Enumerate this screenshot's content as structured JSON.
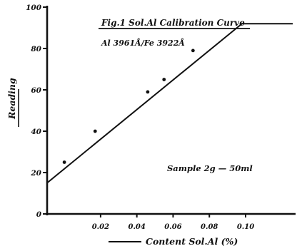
{
  "chart_data": {
    "type": "line",
    "title": "Fig.1 Sol.Al Calibration Curve",
    "subtitle": "Al 3961Å/Fe 3922Å",
    "annotation": "Sample 2g — 50ml",
    "xlabel": "Content Sol.Al (%)",
    "ylabel": "Reading",
    "xlim": [
      -0.0095,
      0.126
    ],
    "ylim": [
      0,
      100
    ],
    "x_ticks": [
      0.02,
      0.04,
      0.06,
      0.08,
      0.1
    ],
    "x_tick_labels": [
      "0.02",
      "0.04",
      "0.06",
      "0.08",
      "0.10"
    ],
    "y_ticks": [
      0,
      20,
      40,
      60,
      80,
      100
    ],
    "y_tick_labels": [
      "0",
      "20",
      "40",
      "60",
      "80",
      "100"
    ],
    "grid": false,
    "series": [
      {
        "points": [
          {
            "x": 0.0,
            "y": 25
          },
          {
            "x": 0.017,
            "y": 40
          },
          {
            "x": 0.046,
            "y": 59
          },
          {
            "x": 0.055,
            "y": 65
          },
          {
            "x": 0.071,
            "y": 79
          }
        ],
        "fit_line": [
          {
            "x": -0.0095,
            "y": 15
          },
          {
            "x": 0.098,
            "y": 92
          },
          {
            "x": 0.126,
            "y": 92
          }
        ]
      }
    ]
  }
}
